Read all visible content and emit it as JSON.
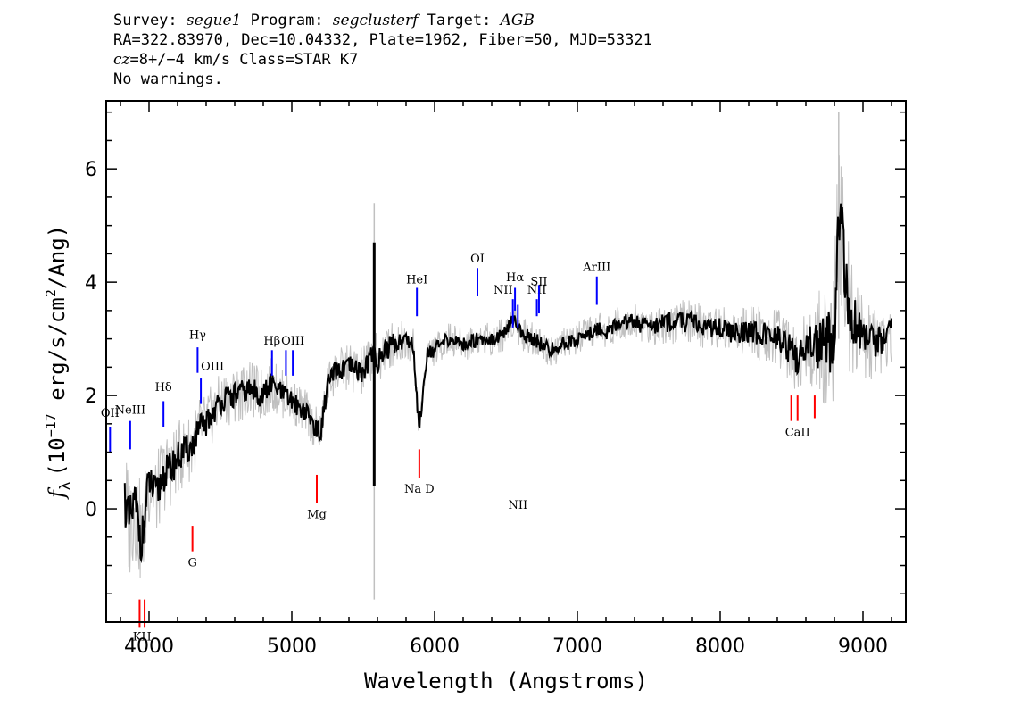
{
  "header": {
    "survey_label": "Survey:",
    "survey": "segue1",
    "program_label": "Program:",
    "program": "segclusterf",
    "target_label": "Target:",
    "target": "AGB",
    "line2": "RA=322.83970, Dec=10.04332, Plate=1962, Fiber=50, MJD=53321",
    "cz": "cz",
    "cz_value": "=8+/−4 km/s Class=STAR K7",
    "line4": "No warnings."
  },
  "chart_data": {
    "type": "line",
    "xlabel": "Wavelength (Angstroms)",
    "ylabel": "f_λ (10^-17 erg/s/cm^2/Ang)",
    "ylabel_parts": {
      "f": "f",
      "sub": "λ",
      "pre": "(10",
      "exp1": "−17",
      "mid": " erg/s/cm",
      "exp2": "2",
      "post": "/Ang)"
    },
    "xlim": [
      3700,
      9300
    ],
    "ylim": [
      -2.0,
      7.2
    ],
    "x_ticks": [
      4000,
      5000,
      6000,
      7000,
      8000,
      9000
    ],
    "y_ticks": [
      0,
      2,
      4,
      6
    ],
    "colors": {
      "flux": "#000000",
      "error_band": "#c0c0c0",
      "emission": "#0000ff",
      "absorption": "#ff0000"
    },
    "series": [
      {
        "role": "flux",
        "x": [
          3830,
          3860,
          3900,
          3950,
          4000,
          4050,
          4100,
          4150,
          4200,
          4250,
          4300,
          4350,
          4400,
          4450,
          4500,
          4600,
          4700,
          4800,
          4850,
          4900,
          4950,
          5000,
          5050,
          5100,
          5150,
          5200,
          5250,
          5300,
          5400,
          5500,
          5550,
          5600,
          5650,
          5700,
          5800,
          5850,
          5890,
          5950,
          6000,
          6100,
          6200,
          6300,
          6400,
          6500,
          6563,
          6600,
          6700,
          6800,
          6900,
          7000,
          7100,
          7150,
          7200,
          7300,
          7400,
          7500,
          7600,
          7700,
          7800,
          7900,
          8000,
          8100,
          8200,
          8300,
          8400,
          8500,
          8540,
          8600,
          8700,
          8800,
          8830,
          8900,
          9000,
          9100,
          9200
        ],
        "y": [
          0.2,
          -0.3,
          0.1,
          -0.6,
          0.5,
          0.2,
          0.6,
          0.7,
          0.9,
          1.0,
          1.1,
          1.4,
          1.5,
          1.7,
          1.9,
          2.0,
          2.1,
          2.0,
          2.2,
          2.1,
          2.0,
          1.9,
          1.8,
          1.7,
          1.5,
          1.3,
          2.2,
          2.4,
          2.5,
          2.4,
          2.7,
          2.6,
          2.8,
          2.9,
          3.0,
          2.9,
          1.4,
          2.8,
          2.8,
          3.0,
          2.9,
          3.0,
          3.0,
          3.1,
          3.4,
          3.1,
          3.0,
          2.8,
          2.9,
          3.0,
          3.1,
          3.2,
          3.1,
          3.3,
          3.3,
          3.2,
          3.3,
          3.3,
          3.3,
          3.2,
          3.2,
          3.1,
          3.1,
          3.1,
          3.0,
          2.8,
          2.6,
          2.9,
          2.9,
          3.0,
          5.5,
          3.5,
          3.0,
          2.9,
          3.1
        ]
      },
      {
        "role": "error_band",
        "x": [
          3830,
          3900,
          4000,
          4100,
          4300,
          4500,
          4800,
          5000,
          5200,
          5300,
          5600,
          5900,
          6100,
          6300,
          6500,
          6700,
          7000,
          7300,
          7600,
          8000,
          8300,
          8600,
          8830,
          9000,
          9200
        ],
        "spread": [
          1.0,
          1.0,
          0.8,
          0.7,
          0.6,
          0.5,
          0.5,
          0.4,
          0.4,
          0.4,
          0.5,
          0.3,
          0.3,
          0.3,
          0.3,
          0.3,
          0.3,
          0.3,
          0.4,
          0.4,
          0.5,
          0.6,
          1.5,
          0.7,
          0.6
        ]
      }
    ],
    "spikes": [
      {
        "x": 5577,
        "y1": 0.4,
        "y2": 4.7,
        "role": "flux"
      },
      {
        "x": 5577,
        "y1": -1.6,
        "y2": 5.4,
        "role": "error_band"
      },
      {
        "x": 8830,
        "y1": 3.0,
        "y2": 7.0,
        "role": "error_band"
      }
    ],
    "emission_lines": [
      {
        "label": "OII",
        "x": 3727,
        "y1": 1.0,
        "y2": 1.45,
        "label_y": 1.62,
        "anchor": "middle"
      },
      {
        "label": "NeIII",
        "x": 3868,
        "y1": 1.05,
        "y2": 1.55,
        "label_y": 1.68,
        "anchor": "middle"
      },
      {
        "label": "Hδ",
        "x": 4101,
        "y1": 1.45,
        "y2": 1.9,
        "label_y": 2.08,
        "anchor": "middle"
      },
      {
        "label": "Hγ",
        "x": 4340,
        "y1": 2.4,
        "y2": 2.85,
        "label_y": 3.0,
        "anchor": "middle"
      },
      {
        "label": "OIII",
        "x": 4363,
        "y1": 1.85,
        "y2": 2.3,
        "label_y": 2.45,
        "anchor": "start"
      },
      {
        "label": "Hβ",
        "x": 4861,
        "y1": 2.35,
        "y2": 2.8,
        "label_y": 2.9,
        "anchor": "middle"
      },
      {
        "label": "",
        "x": 4959,
        "y1": 2.35,
        "y2": 2.8,
        "label_y": 0,
        "anchor": "middle"
      },
      {
        "label": "OIII",
        "x": 5007,
        "y1": 2.35,
        "y2": 2.8,
        "label_y": 2.9,
        "anchor": "middle"
      },
      {
        "label": "HeI",
        "x": 5876,
        "y1": 3.4,
        "y2": 3.9,
        "label_y": 3.98,
        "anchor": "middle"
      },
      {
        "label": "OI",
        "x": 6300,
        "y1": 3.75,
        "y2": 4.25,
        "label_y": 4.35,
        "anchor": "middle"
      },
      {
        "label": "NII",
        "x": 6548,
        "y1": 3.2,
        "y2": 3.7,
        "label_y": 3.8,
        "anchor": "end"
      },
      {
        "label": "Hα",
        "x": 6563,
        "y1": 3.5,
        "y2": 3.9,
        "label_y": 4.02,
        "anchor": "middle"
      },
      {
        "label": "NII",
        "x": 6583,
        "y1": 3.2,
        "y2": 3.6,
        "label_y": 0,
        "anchor": "middle"
      },
      {
        "label": "NII",
        "x": 6716,
        "y1": 3.4,
        "y2": 3.7,
        "label_y": 3.8,
        "anchor": "middle"
      },
      {
        "label": "SII",
        "x": 6731,
        "y1": 3.45,
        "y2": 3.95,
        "label_y": 3.95,
        "anchor": "middle"
      },
      {
        "label": "ArIII",
        "x": 7136,
        "y1": 3.6,
        "y2": 4.1,
        "label_y": 4.2,
        "anchor": "middle"
      }
    ],
    "absorption_lines": [
      {
        "label": "K",
        "x": 3934,
        "y1": -1.6,
        "y2": -2.1
      },
      {
        "label": "H",
        "x": 3969,
        "y1": -1.6,
        "y2": -2.1
      },
      {
        "label": "G",
        "x": 4304,
        "y1": -0.3,
        "y2": -0.75
      },
      {
        "label": "Mg",
        "x": 5175,
        "y1": 0.6,
        "y2": 0.1
      },
      {
        "label": "Na D",
        "x": 5893,
        "y1": 1.05,
        "y2": 0.55
      },
      {
        "label": "",
        "x": 8498,
        "y1": 2.0,
        "y2": 1.55
      },
      {
        "label": "CaII",
        "x": 8542,
        "y1": 2.0,
        "y2": 1.55
      },
      {
        "label": "",
        "x": 8662,
        "y1": 2.0,
        "y2": 1.6
      }
    ]
  }
}
